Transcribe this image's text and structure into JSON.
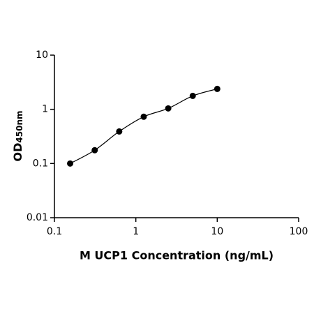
{
  "chart_data": {
    "type": "scatter",
    "xlabel": "M UCP1 Concentration (ng/mL)",
    "ylabel": "OD",
    "ylabel_sub": "450nm",
    "x": [
      0.156,
      0.3125,
      0.625,
      1.25,
      2.5,
      5,
      10
    ],
    "series": [
      {
        "color": "#000000",
        "values": [
          0.1,
          0.176,
          0.39,
          0.73,
          1.04,
          1.77,
          2.38
        ]
      }
    ],
    "xscale": "log",
    "yscale": "log",
    "xlim": [
      0.1,
      100
    ],
    "ylim": [
      0.01,
      10
    ],
    "xticks": [
      0.1,
      1,
      10,
      100
    ],
    "yticks": [
      0.01,
      0.1,
      1,
      10
    ],
    "fit_line": true
  }
}
